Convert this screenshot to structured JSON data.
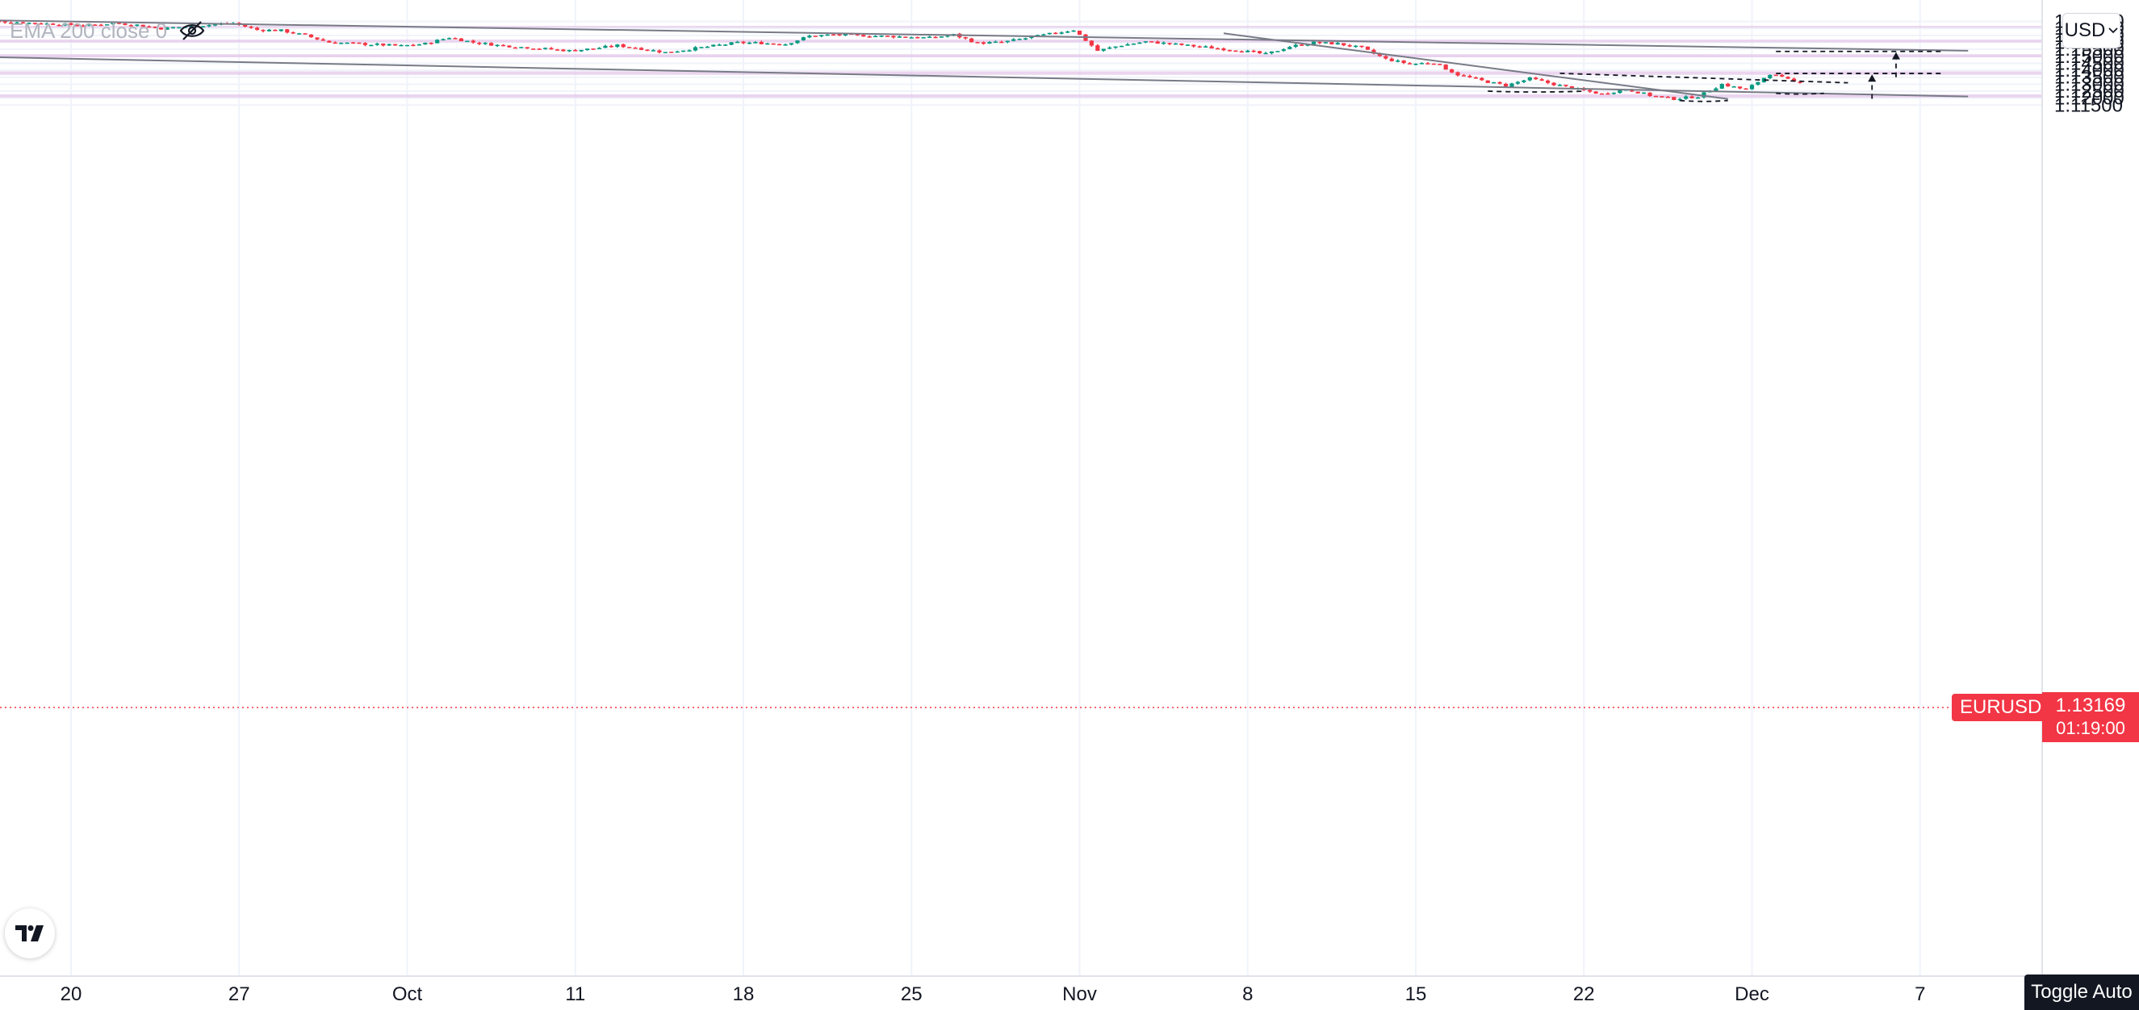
{
  "indicator": {
    "label": "EMA 200 close 0",
    "eye_icon": "eye-crossed-icon"
  },
  "currency": {
    "label": "USD",
    "icon": "chevron-down-icon"
  },
  "price_badge": {
    "symbol": "EURUSD",
    "price": "1.13169",
    "countdown": "01:19:00"
  },
  "toggle_auto": {
    "label": "Toggle Auto"
  },
  "logo": {
    "icon": "tradingview-logo-icon"
  },
  "colors": {
    "up": "#089981",
    "down": "#f23645",
    "zone": "#e1bee7",
    "trendline": "#787b86",
    "current_price": "#f23645"
  },
  "chart_data": {
    "type": "candlestick",
    "symbol": "EURUSD",
    "current_price": 1.13169,
    "y_axis": {
      "range": [
        1.1125,
        1.1775
      ],
      "ticks": [
        "1.17500",
        "1.17000",
        "1.16500",
        "1.16000",
        "1.15500",
        "1.15000",
        "1.14500",
        "1.14000",
        "1.13500",
        "1.13000",
        "1.12500",
        "1.12000",
        "1.11500"
      ],
      "tick_values": [
        1.175,
        1.17,
        1.165,
        1.16,
        1.155,
        1.15,
        1.145,
        1.14,
        1.135,
        1.13,
        1.125,
        1.12,
        1.115
      ]
    },
    "x_axis": {
      "ticks": [
        "20",
        "27",
        "Oct",
        "11",
        "18",
        "25",
        "Nov",
        "8",
        "15",
        "22",
        "Dec",
        "7"
      ],
      "tick_dates": [
        "2021-09-20",
        "2021-09-27",
        "2021-10-04",
        "2021-10-11",
        "2021-10-18",
        "2021-10-25",
        "2021-11-01",
        "2021-11-08",
        "2021-11-15",
        "2021-11-22",
        "2021-11-29",
        "2021-12-06"
      ]
    },
    "zones": [
      {
        "low": 1.1705,
        "high": 1.1718
      },
      {
        "low": 1.16,
        "high": 1.162
      },
      {
        "low": 1.1493,
        "high": 1.1515
      },
      {
        "low": 1.1367,
        "high": 1.1392
      },
      {
        "low": 1.1204,
        "high": 1.1227
      }
    ],
    "path": [
      [
        "2021-09-16",
        1.1785
      ],
      [
        "2021-09-17",
        1.1752
      ],
      [
        "2021-09-20",
        1.1728
      ],
      [
        "2021-09-21",
        1.1722
      ],
      [
        "2021-09-22",
        1.1738
      ],
      [
        "2021-09-23",
        1.1725
      ],
      [
        "2021-09-24",
        1.17
      ],
      [
        "2021-09-27",
        1.1738
      ],
      [
        "2021-09-28",
        1.169
      ],
      [
        "2021-09-29",
        1.1685
      ],
      [
        "2021-09-30",
        1.165
      ],
      [
        "2021-10-01",
        1.16
      ],
      [
        "2021-10-04",
        1.1575
      ],
      [
        "2021-10-05",
        1.159
      ],
      [
        "2021-10-06",
        1.1635
      ],
      [
        "2021-10-07",
        1.16
      ],
      [
        "2021-10-08",
        1.158
      ],
      [
        "2021-10-11",
        1.154
      ],
      [
        "2021-10-12",
        1.1555
      ],
      [
        "2021-10-13",
        1.1578
      ],
      [
        "2021-10-14",
        1.1555
      ],
      [
        "2021-10-15",
        1.1528
      ],
      [
        "2021-10-18",
        1.1598
      ],
      [
        "2021-10-19",
        1.1595
      ],
      [
        "2021-10-20",
        1.1588
      ],
      [
        "2021-10-21",
        1.1645
      ],
      [
        "2021-10-22",
        1.1655
      ],
      [
        "2021-10-25",
        1.164
      ],
      [
        "2021-10-26",
        1.1632
      ],
      [
        "2021-10-27",
        1.1655
      ],
      [
        "2021-10-28",
        1.1595
      ],
      [
        "2021-10-29",
        1.16
      ],
      [
        "2021-11-01",
        1.169
      ],
      [
        "2021-11-02",
        1.154
      ],
      [
        "2021-11-03",
        1.158
      ],
      [
        "2021-11-04",
        1.1605
      ],
      [
        "2021-11-05",
        1.159
      ],
      [
        "2021-11-08",
        1.154
      ],
      [
        "2021-11-09",
        1.1515
      ],
      [
        "2021-11-10",
        1.157
      ],
      [
        "2021-11-11",
        1.1598
      ],
      [
        "2021-11-12",
        1.159
      ],
      [
        "2021-11-13",
        1.156
      ],
      [
        "2021-11-14",
        1.148
      ],
      [
        "2021-11-15",
        1.1445
      ],
      [
        "2021-11-16",
        1.1455
      ],
      [
        "2021-11-17",
        1.1368
      ],
      [
        "2021-11-18",
        1.1325
      ],
      [
        "2021-11-19",
        1.129
      ],
      [
        "2021-11-20",
        1.134
      ],
      [
        "2021-11-21",
        1.13
      ],
      [
        "2021-11-22",
        1.1262
      ],
      [
        "2021-11-23",
        1.123
      ],
      [
        "2021-11-24",
        1.1265
      ],
      [
        "2021-11-25",
        1.122
      ],
      [
        "2021-11-26",
        1.1195
      ],
      [
        "2021-11-27",
        1.1212
      ],
      [
        "2021-11-28",
        1.13
      ],
      [
        "2021-11-29",
        1.126
      ],
      [
        "2021-11-30",
        1.1375
      ],
      [
        "2021-12-01",
        1.1317
      ]
    ],
    "trendlines": [
      {
        "style": "solid",
        "from": [
          "2021-09-01",
          1.18
        ],
        "to": [
          "2021-12-08",
          1.154
        ]
      },
      {
        "style": "solid",
        "from": [
          "2021-09-12",
          1.151
        ],
        "to": [
          "2021-12-08",
          1.1212
        ]
      },
      {
        "style": "solid",
        "from": [
          "2021-11-07",
          1.1665
        ],
        "to": [
          "2021-11-28",
          1.1194
        ]
      },
      {
        "style": "dashed",
        "from": [
          "2021-11-21",
          1.1378
        ],
        "to": [
          "2021-12-03",
          1.131
        ]
      },
      {
        "style": "dashed",
        "from": [
          "2021-11-30",
          1.1377
        ],
        "to": [
          "2021-12-07",
          1.1377
        ]
      },
      {
        "style": "dashed",
        "from": [
          "2021-11-30",
          1.1535
        ],
        "to": [
          "2021-12-07",
          1.1535
        ]
      }
    ],
    "arrows": [
      {
        "from": [
          "2021-12-05",
          1.135
        ],
        "to": [
          "2021-12-05",
          1.153
        ]
      },
      {
        "from": [
          "2021-12-04",
          1.1195
        ],
        "to": [
          "2021-12-04",
          1.137
        ]
      }
    ],
    "arcs": [
      {
        "from": [
          "2021-11-18",
          1.125
        ],
        "to": [
          "2021-11-22",
          1.125
        ],
        "depth": 0.0012
      },
      {
        "from": [
          "2021-11-26",
          1.1183
        ],
        "to": [
          "2021-11-28",
          1.1183
        ],
        "depth": 0.0013
      },
      {
        "from": [
          "2021-11-30",
          1.1235
        ],
        "to": [
          "2021-12-02",
          1.1235
        ],
        "depth": 0.0012
      }
    ]
  }
}
